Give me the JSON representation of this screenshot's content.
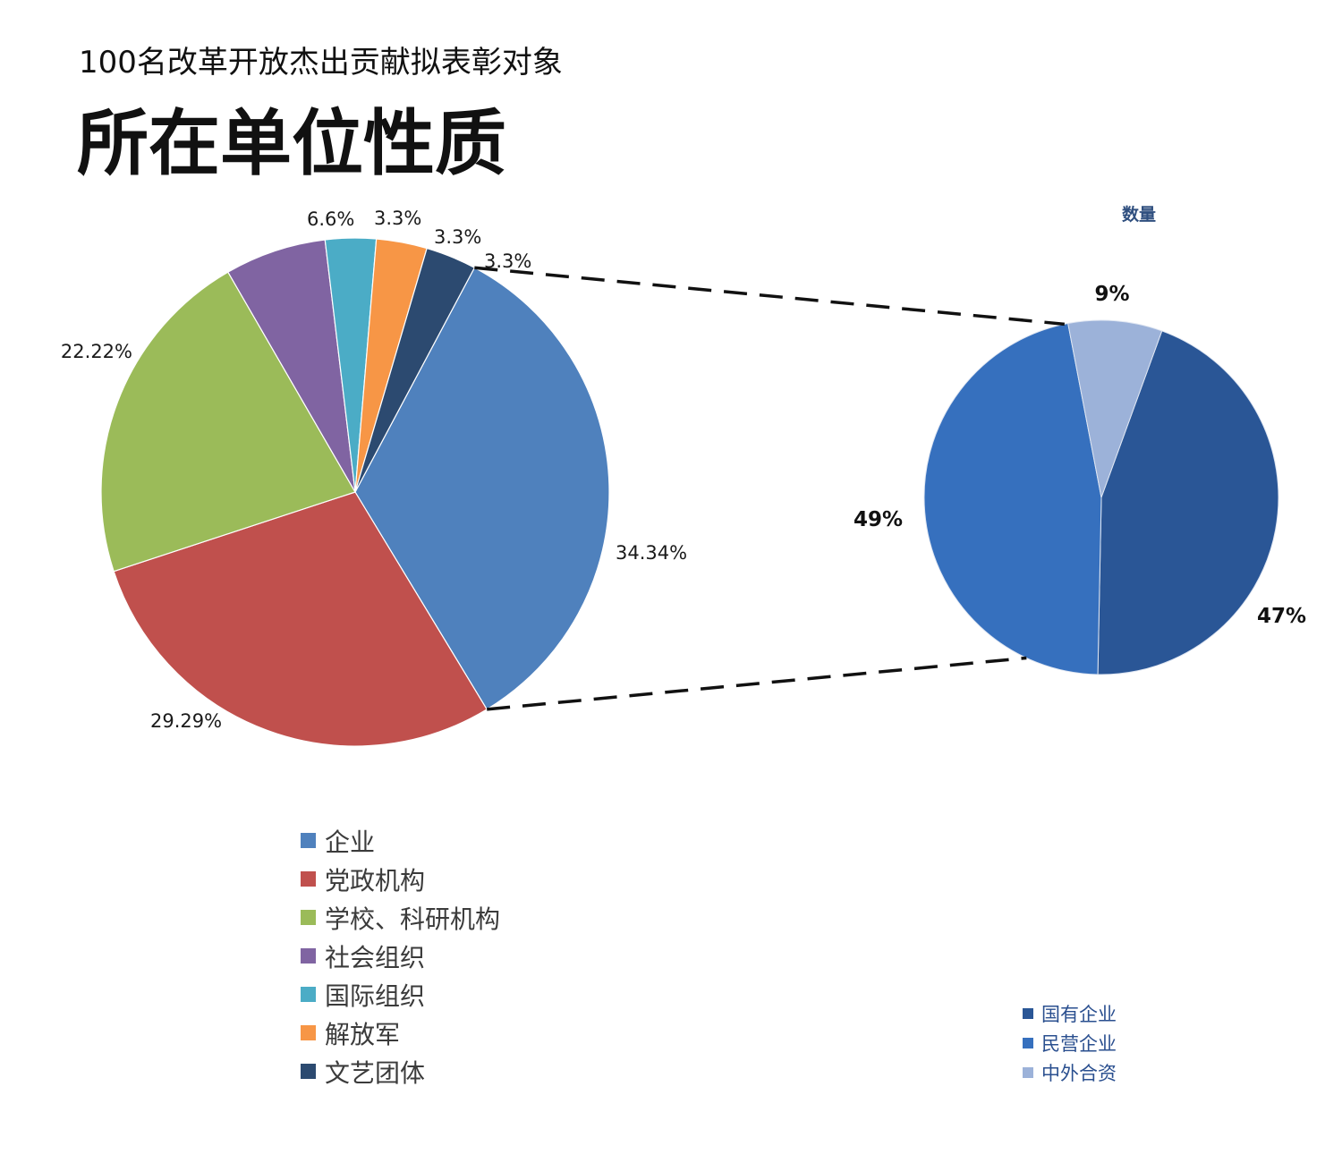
{
  "header": {
    "subtitle": "100名改革开放杰出贡献拟表彰对象",
    "title": "所在单位性质"
  },
  "chart_data": [
    {
      "type": "pie",
      "title": "",
      "slices": [
        {
          "name": "企业",
          "value": 34.34,
          "label": "34.34%",
          "color": "#4f81bd"
        },
        {
          "name": "党政机构",
          "value": 29.29,
          "label": "29.29%",
          "color": "#c0504d"
        },
        {
          "name": "学校、科研机构",
          "value": 22.22,
          "label": "22.22%",
          "color": "#9bbb59"
        },
        {
          "name": "社会组织",
          "value": 6.6,
          "label": "6.6%",
          "color": "#8064a2"
        },
        {
          "name": "国际组织",
          "value": 3.3,
          "label": "3.3%",
          "color": "#4bacc6"
        },
        {
          "name": "解放军",
          "value": 3.3,
          "label": "3.3%",
          "color": "#f79646"
        },
        {
          "name": "文艺团体",
          "value": 3.3,
          "label": "3.3%",
          "color": "#2c4a70"
        }
      ],
      "legend_position": "bottom"
    },
    {
      "type": "pie",
      "title": "数量",
      "breakdown_of": "企业",
      "slices": [
        {
          "name": "国有企业",
          "value": 47,
          "label": "47%",
          "color": "#2a5696"
        },
        {
          "name": "民营企业",
          "value": 49,
          "label": "49%",
          "color": "#3670be"
        },
        {
          "name": "中外合资",
          "value": 9,
          "label": "9%",
          "color": "#9cb2d9"
        }
      ],
      "legend_position": "bottom-right"
    }
  ]
}
